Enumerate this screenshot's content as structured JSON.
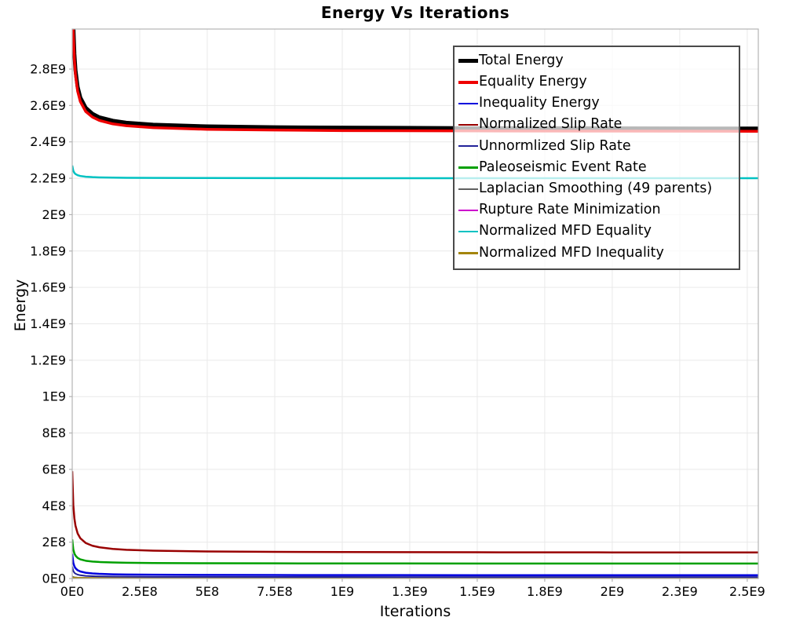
{
  "chart_data": {
    "type": "line",
    "title": "Energy Vs Iterations",
    "xlabel": "Iterations",
    "ylabel": "Energy",
    "grid": true,
    "legend_position": "inside-top-right",
    "values_unit": "1e9",
    "xlim": [
      0,
      2.541
    ],
    "ylim": [
      0,
      3.02
    ],
    "axis_color": "#b3b3b3",
    "grid_color": "#e9e9e9",
    "x_ticks": {
      "values": [
        0,
        0.25,
        0.5,
        0.75,
        1.0,
        1.25,
        1.5,
        1.75,
        2.0,
        2.25,
        2.5
      ],
      "labels": [
        "0E0",
        "2.5E8",
        "5E8",
        "7.5E8",
        "1E9",
        "1.3E9",
        "1.5E9",
        "1.8E9",
        "2E9",
        "2.3E9",
        "2.5E9"
      ]
    },
    "y_ticks": {
      "values": [
        0,
        0.2,
        0.4,
        0.6,
        0.8,
        1.0,
        1.2,
        1.4,
        1.6,
        1.8,
        2.0,
        2.2,
        2.4,
        2.6,
        2.8
      ],
      "labels": [
        "0E0",
        "2E8",
        "4E8",
        "6E8",
        "8E8",
        "1E9",
        "1.2E9",
        "1.4E9",
        "1.6E9",
        "1.8E9",
        "2E9",
        "2.2E9",
        "2.4E9",
        "2.6E9",
        "2.8E9"
      ]
    },
    "x": [
      0,
      0.004,
      0.008,
      0.012,
      0.02,
      0.03,
      0.05,
      0.075,
      0.1,
      0.15,
      0.2,
      0.3,
      0.5,
      0.75,
      1.0,
      1.5,
      2.0,
      2.54
    ],
    "draw_order": [
      0,
      1,
      6,
      7,
      9,
      4,
      2,
      5,
      3,
      8
    ],
    "series": [
      {
        "name": "Total Energy",
        "color": "#000000",
        "width": 5,
        "values": [
          3.45,
          3.042,
          2.883,
          2.795,
          2.702,
          2.643,
          2.587,
          2.554,
          2.535,
          2.516,
          2.505,
          2.494,
          2.485,
          2.48,
          2.478,
          2.475,
          2.474,
          2.473
        ]
      },
      {
        "name": "Equality Energy",
        "color": "#ee0000",
        "width": 3.5,
        "values": [
          3.4,
          3.007,
          2.853,
          2.769,
          2.679,
          2.622,
          2.567,
          2.536,
          2.518,
          2.499,
          2.489,
          2.478,
          2.469,
          2.465,
          2.462,
          2.46,
          2.459,
          2.458
        ]
      },
      {
        "name": "Inequality Energy",
        "color": "#0000dd",
        "width": 2.5,
        "values": [
          0.135,
          0.0863,
          0.0673,
          0.0568,
          0.0457,
          0.0387,
          0.0319,
          0.028,
          0.0258,
          0.0234,
          0.0222,
          0.0209,
          0.0198,
          0.0192,
          0.0189,
          0.0186,
          0.0185,
          0.0184
        ]
      },
      {
        "name": "Normalized Slip Rate",
        "color": "#990000",
        "width": 2.5,
        "values": [
          0.59,
          0.4036,
          0.3306,
          0.2907,
          0.2482,
          0.2213,
          0.1953,
          0.1802,
          0.1719,
          0.1628,
          0.158,
          0.153,
          0.1487,
          0.1466,
          0.1455,
          0.1443,
          0.1437,
          0.1433
        ]
      },
      {
        "name": "Unnormlized Slip Rate",
        "color": "#222299",
        "width": 2,
        "values": [
          0.065,
          0.0413,
          0.032,
          0.0269,
          0.0215,
          0.0181,
          0.0148,
          0.0129,
          0.0118,
          0.0107,
          0.01,
          0.0094,
          0.0089,
          0.0086,
          0.0084,
          0.0083,
          0.0082,
          0.0082
        ]
      },
      {
        "name": "Paleoseismic Event Rate",
        "color": "#00a000",
        "width": 2.5,
        "values": [
          0.215,
          0.1597,
          0.138,
          0.1262,
          0.1135,
          0.1055,
          0.0978,
          0.0933,
          0.0909,
          0.0882,
          0.0868,
          0.0853,
          0.084,
          0.0834,
          0.083,
          0.0827,
          0.0825,
          0.0824
        ]
      },
      {
        "name": "Laplacian Smoothing (49 parents)",
        "color": "#606060",
        "width": 2,
        "values": [
          0.012,
          0.008,
          0.0065,
          0.0057,
          0.0048,
          0.0042,
          0.0036,
          0.0033,
          0.0031,
          0.0029,
          0.0028,
          0.0027,
          0.0026,
          0.0026,
          0.0026,
          0.0025,
          0.0025,
          0.0025
        ]
      },
      {
        "name": "Rupture Rate Minimization",
        "color": "#cc00cc",
        "width": 2,
        "values": [
          0.006,
          0.004,
          0.0032,
          0.0028,
          0.0023,
          0.0021,
          0.0018,
          0.0016,
          0.0015,
          0.0014,
          0.0014,
          0.0013,
          0.0013,
          0.0012,
          0.0012,
          0.0012,
          0.0012,
          0.0012
        ]
      },
      {
        "name": "Normalized MFD Equality",
        "color": "#00c2c2",
        "width": 2.5,
        "values": [
          2.27,
          2.2409,
          2.2295,
          2.2232,
          2.2166,
          2.2124,
          2.2083,
          2.206,
          2.2047,
          2.2033,
          2.2025,
          2.2017,
          2.2011,
          2.2007,
          2.2005,
          2.2004,
          2.2003,
          2.2002
        ]
      },
      {
        "name": "Normalized MFD Inequality",
        "color": "#a38409",
        "width": 2.5,
        "values": [
          0.005,
          0.0038,
          0.0033,
          0.003,
          0.0027,
          0.0025,
          0.0024,
          0.0023,
          0.0022,
          0.0021,
          0.0021,
          0.0021,
          0.002,
          0.002,
          0.002,
          0.002,
          0.002,
          0.002
        ]
      }
    ]
  }
}
